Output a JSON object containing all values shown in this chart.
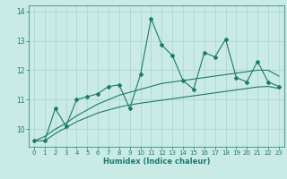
{
  "xlabel": "Humidex (Indice chaleur)",
  "ylabel": "",
  "bg_color": "#caeae5",
  "line_color": "#1a7a6e",
  "grid_color": "#a8d4cf",
  "x_data": [
    0,
    1,
    2,
    3,
    4,
    5,
    6,
    7,
    8,
    9,
    10,
    11,
    12,
    13,
    14,
    15,
    16,
    17,
    18,
    19,
    20,
    21,
    22,
    23
  ],
  "y_main": [
    9.6,
    9.6,
    10.7,
    10.1,
    11.0,
    11.1,
    11.2,
    11.45,
    11.5,
    10.7,
    11.85,
    13.75,
    12.85,
    12.5,
    11.65,
    11.35,
    12.6,
    12.45,
    13.05,
    11.75,
    11.6,
    12.3,
    11.6,
    11.45
  ],
  "y_upper": [
    9.6,
    9.75,
    10.0,
    10.2,
    10.45,
    10.65,
    10.85,
    11.0,
    11.15,
    11.25,
    11.35,
    11.45,
    11.55,
    11.6,
    11.65,
    11.7,
    11.75,
    11.8,
    11.85,
    11.9,
    11.95,
    12.0,
    12.0,
    11.8
  ],
  "y_lower": [
    9.6,
    9.6,
    9.85,
    10.05,
    10.25,
    10.4,
    10.55,
    10.65,
    10.75,
    10.82,
    10.88,
    10.93,
    10.98,
    11.03,
    11.08,
    11.13,
    11.18,
    11.23,
    11.28,
    11.33,
    11.38,
    11.43,
    11.45,
    11.38
  ],
  "ylim": [
    9.4,
    14.2
  ],
  "xlim": [
    -0.5,
    23.5
  ],
  "yticks": [
    10,
    11,
    12,
    13,
    14
  ],
  "xticks": [
    0,
    1,
    2,
    3,
    4,
    5,
    6,
    7,
    8,
    9,
    10,
    11,
    12,
    13,
    14,
    15,
    16,
    17,
    18,
    19,
    20,
    21,
    22,
    23
  ]
}
